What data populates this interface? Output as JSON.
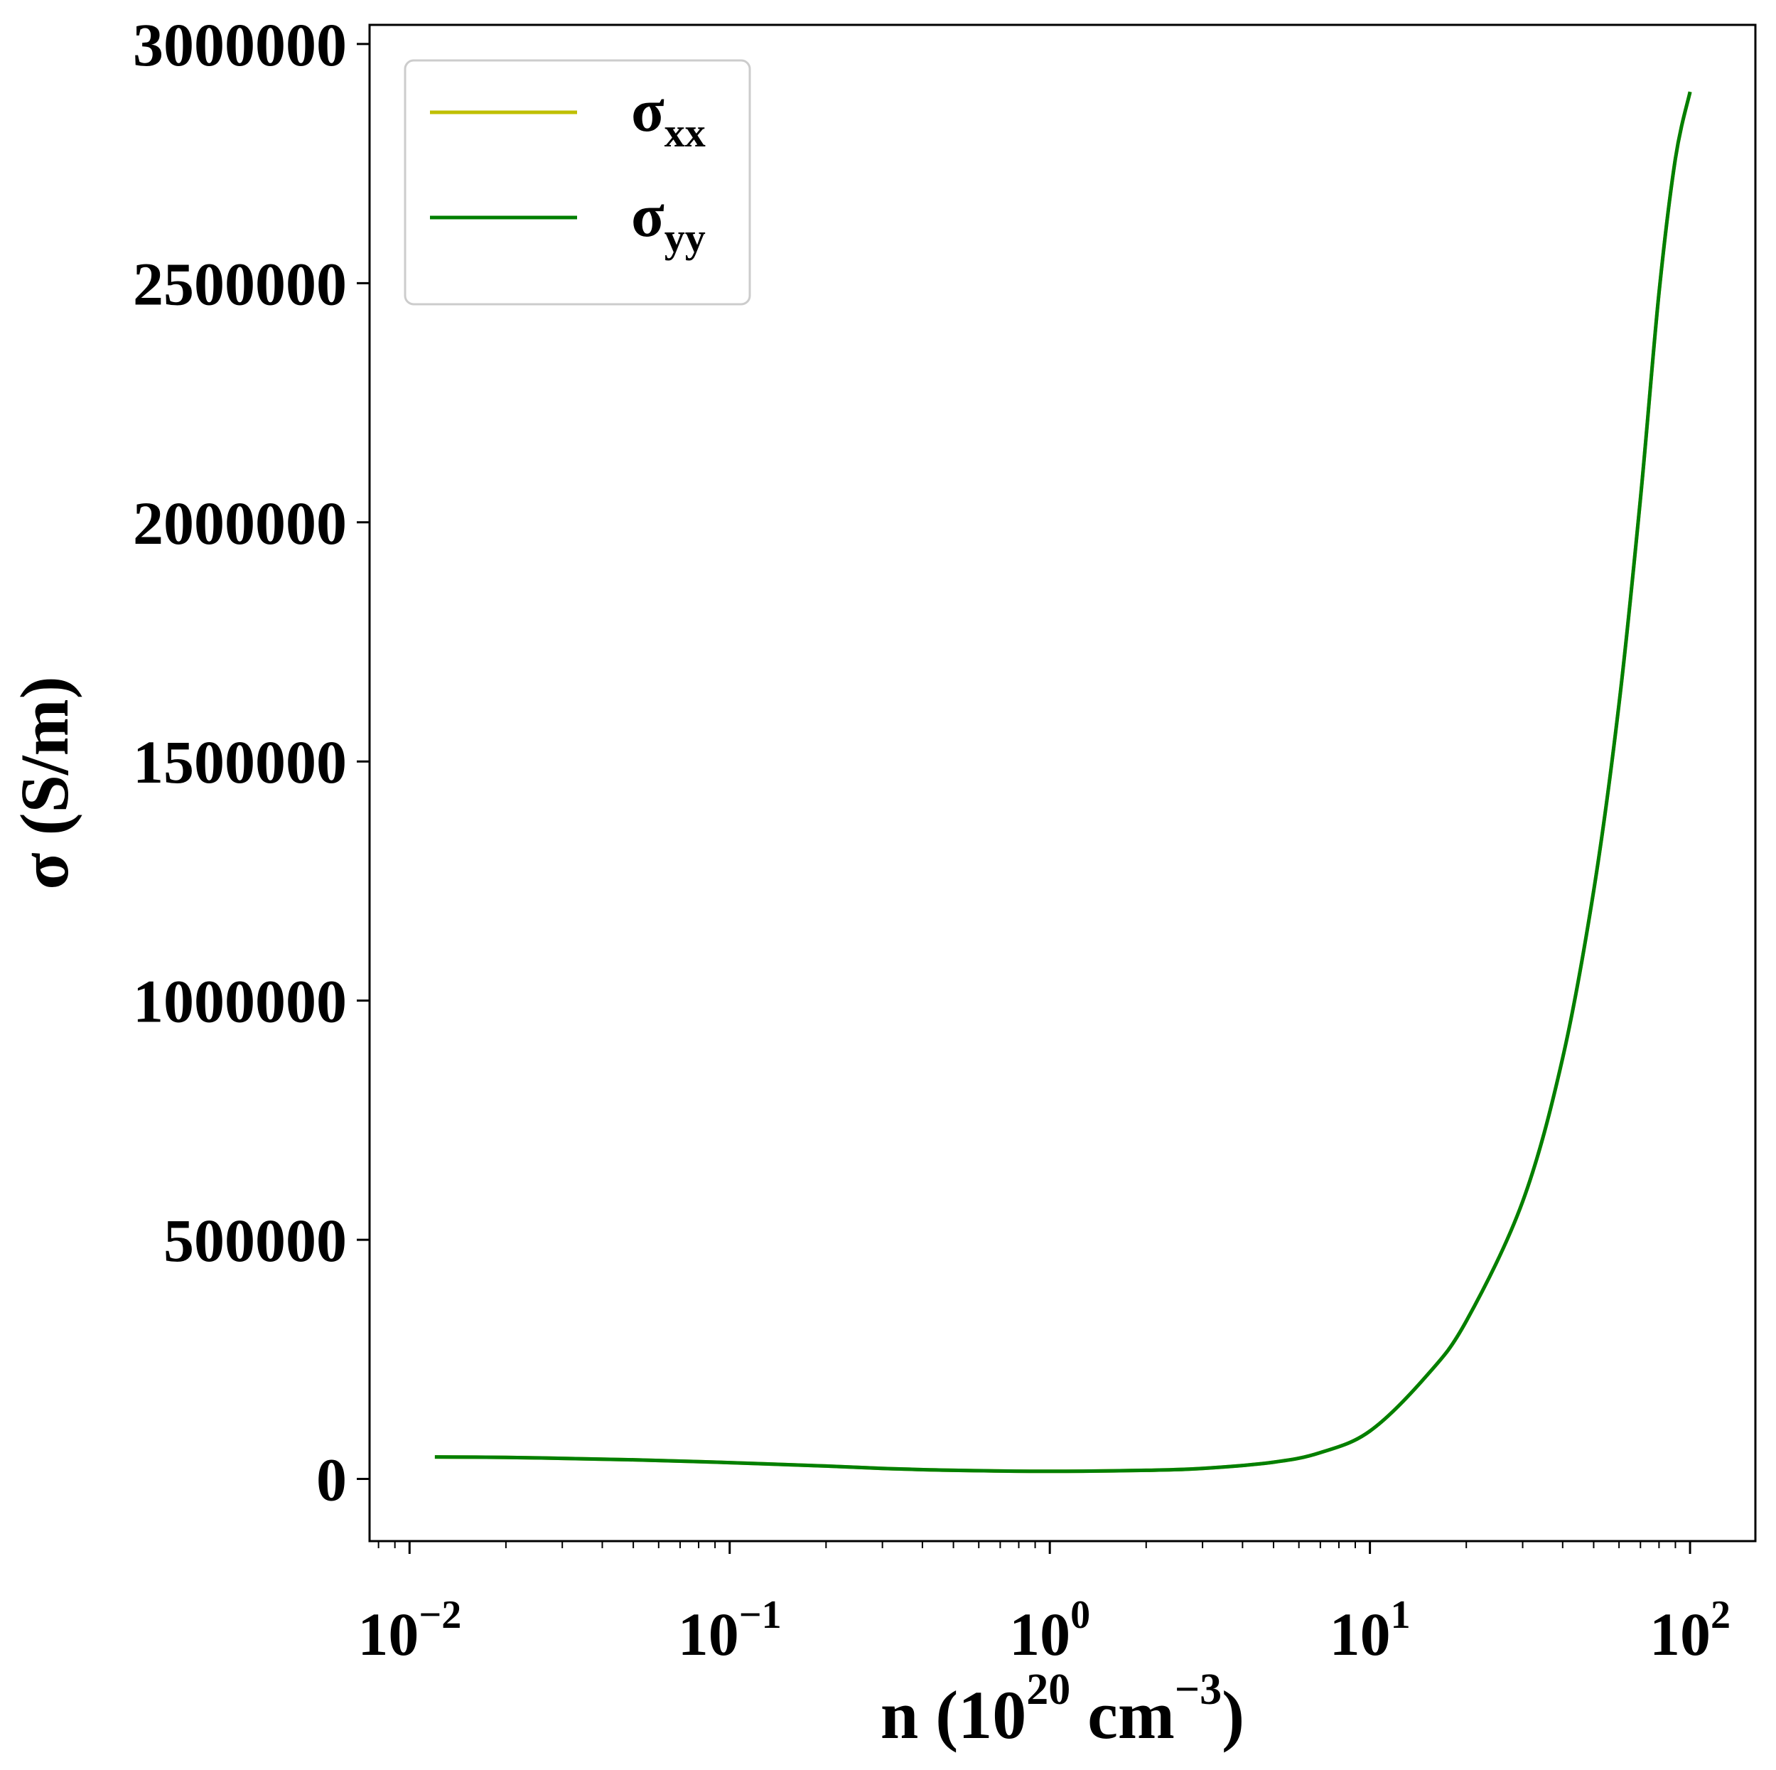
{
  "chart_data": {
    "type": "line",
    "xscale": "log",
    "xlim": [
      0.0075,
      160
    ],
    "ylim": [
      -130000,
      3040000
    ],
    "grid": false,
    "legend_position": "top-left",
    "xlabel": {
      "prefix": "n (10",
      "exp": "20",
      "middle": " cm",
      "exp2": "−3",
      "suffix": ")"
    },
    "ylabel": "σ (S/m)",
    "x_ticks": [
      {
        "value": 0.01,
        "base": "10",
        "exp": "−2"
      },
      {
        "value": 0.1,
        "base": "10",
        "exp": "−1"
      },
      {
        "value": 1,
        "base": "10",
        "exp": "0"
      },
      {
        "value": 10,
        "base": "10",
        "exp": "1"
      },
      {
        "value": 100,
        "base": "10",
        "exp": "2"
      }
    ],
    "y_ticks": [
      {
        "value": 0,
        "label": "0"
      },
      {
        "value": 500000,
        "label": "500000"
      },
      {
        "value": 1000000,
        "label": "1000000"
      },
      {
        "value": 1500000,
        "label": "1500000"
      },
      {
        "value": 2000000,
        "label": "2000000"
      },
      {
        "value": 2500000,
        "label": "2500000"
      },
      {
        "value": 3000000,
        "label": "3000000"
      }
    ],
    "x": [
      0.012,
      0.02,
      0.03,
      0.05,
      0.1,
      0.2,
      0.3,
      0.5,
      1,
      2,
      3,
      5,
      7,
      10,
      15,
      20,
      30,
      40,
      50,
      60,
      70,
      80,
      90,
      100
    ],
    "series": [
      {
        "name": "σ",
        "sub": "xx",
        "color": "#bfbf00",
        "values": [
          46000,
          45000,
          43000,
          40000,
          34000,
          27000,
          22000,
          18000,
          16000,
          18000,
          22000,
          35000,
          55000,
          100000,
          215000,
          330000,
          580000,
          880000,
          1230000,
          1620000,
          2050000,
          2480000,
          2760000,
          2900000
        ]
      },
      {
        "name": "σ",
        "sub": "yy",
        "color": "#007f00",
        "values": [
          46000,
          45000,
          43000,
          40000,
          34000,
          27000,
          22000,
          18000,
          16000,
          18000,
          22000,
          35000,
          55000,
          100000,
          215000,
          330000,
          580000,
          880000,
          1230000,
          1620000,
          2050000,
          2480000,
          2760000,
          2900000
        ]
      }
    ]
  }
}
